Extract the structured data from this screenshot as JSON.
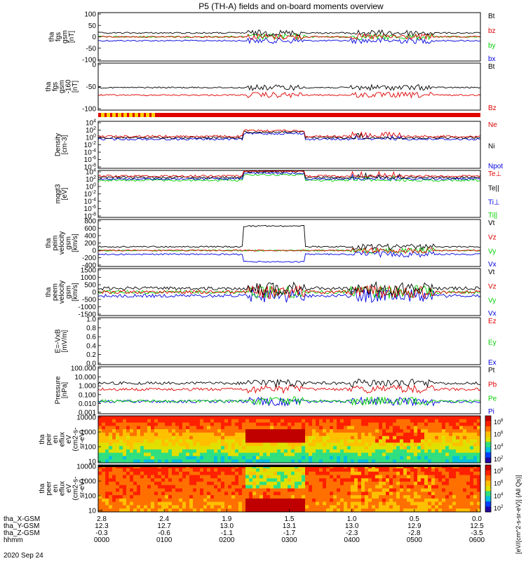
{
  "title": "P5 (TH-A) fields and on-board moments overview",
  "date_label": "2020 Sep 24",
  "spectrogram_colorbar_label": "[eV/(cm^2-s-sr-eV)] (All Qs)]",
  "colors": {
    "red": "#e00000",
    "green": "#00d000",
    "blue": "#0000e0",
    "black": "#000000",
    "yellow": "#ffd000"
  },
  "chart_data": {
    "type": "line",
    "x_axis": {
      "tick_labels": [
        "0000",
        "0100",
        "0200",
        "0300",
        "0400",
        "0500",
        "0600"
      ],
      "extra_rows": [
        {
          "name": "tha_X-GSM",
          "values": [
            "2.8",
            "2.4",
            "1.9",
            "1.5",
            "1.0",
            "0.5",
            "0.0"
          ]
        },
        {
          "name": "tha_Y-GSM",
          "values": [
            "12.3",
            "12.7",
            "13.0",
            "13.1",
            "13.0",
            "12.9",
            "12.5"
          ]
        },
        {
          "name": "tha_Z-GSM",
          "values": [
            "-0.3",
            "-0.6",
            "-1.1",
            "-1.7",
            "-2.3",
            "-2.8",
            "-3.5"
          ]
        },
        {
          "name": "hhmm",
          "values": [
            "0000",
            "0100",
            "0200",
            "0300",
            "0400",
            "0500",
            "0600"
          ]
        }
      ]
    },
    "panels": [
      {
        "ylabel": [
          "tha",
          "fgs",
          "gsm",
          "[nT]"
        ],
        "yticks": [
          "100",
          "50",
          "0",
          "-50",
          "-100"
        ],
        "ylim": [
          -100,
          100
        ],
        "legend": [
          {
            "text": "Bt",
            "color": "black"
          },
          {
            "text": "bz",
            "color": "red"
          },
          {
            "text": "by",
            "color": "green"
          },
          {
            "text": "bx",
            "color": "blue"
          }
        ]
      },
      {
        "ylabel": [
          "tha",
          "fgs",
          "gsm",
          "-160",
          "[nT]"
        ],
        "yticks": [
          "0",
          "-50",
          "-100"
        ],
        "ylim": [
          -130,
          40
        ],
        "legend": [
          {
            "text": "Bt",
            "color": "black"
          },
          {
            "text": "Bz",
            "color": "red"
          }
        ]
      },
      {
        "ylabel": [
          "Density",
          "[cm-3]"
        ],
        "yticks": [
          "10^4",
          "10^2",
          "10^0",
          "10^-2",
          "10^-4",
          "10^-6",
          "10^-8"
        ],
        "legend": [
          {
            "text": "Ne",
            "color": "red"
          },
          {
            "text": "Ni",
            "color": "black"
          },
          {
            "text": "Npot",
            "color": "blue"
          }
        ]
      },
      {
        "ylabel": [
          "mqgt3",
          "[eV]"
        ],
        "yticks": [
          "10^4",
          "10^2",
          "10^0",
          "10^-2",
          "10^-4",
          "10^-6",
          "10^-8"
        ],
        "legend": [
          {
            "text": "Te⊥",
            "color": "red"
          },
          {
            "text": "Te||",
            "color": "black"
          },
          {
            "text": "Ti⊥",
            "color": "blue"
          },
          {
            "text": "Ti||",
            "color": "green"
          }
        ]
      },
      {
        "ylabel": [
          "tha",
          "peim",
          "velocity",
          "gsm",
          "[km/s]"
        ],
        "yticks": [
          "800",
          "600",
          "400",
          "200",
          "0",
          "-200",
          "-400"
        ],
        "ylim": [
          -400,
          800
        ],
        "legend": [
          {
            "text": "Vt",
            "color": "black"
          },
          {
            "text": "Vz",
            "color": "red"
          },
          {
            "text": "Vy",
            "color": "green"
          },
          {
            "text": "Vx",
            "color": "blue"
          }
        ]
      },
      {
        "ylabel": [
          "tha",
          "peem",
          "velocity",
          "gsm",
          "[km/s]"
        ],
        "yticks": [
          "1500",
          "1000",
          "500",
          "0",
          "-500",
          "-1000",
          "-1500"
        ],
        "ylim": [
          -1500,
          1500
        ],
        "legend": [
          {
            "text": "Vt",
            "color": "black"
          },
          {
            "text": "Vz",
            "color": "red"
          },
          {
            "text": "Vy",
            "color": "green"
          },
          {
            "text": "Vx",
            "color": "blue"
          }
        ]
      },
      {
        "ylabel": [
          "E=-VxB",
          "[mV/m]"
        ],
        "yticks": [
          "1.0",
          "0.8",
          "0.6",
          "0.4",
          "0.2",
          "0.0"
        ],
        "ylim": [
          0,
          1
        ],
        "legend": [
          {
            "text": "Ez",
            "color": "red"
          },
          {
            "text": "Ey",
            "color": "green"
          },
          {
            "text": "Ex",
            "color": "blue"
          }
        ]
      },
      {
        "ylabel": [
          "Pressure",
          "[nPa]"
        ],
        "yticks": [
          "100.000",
          "10.000",
          "1.000",
          "0.100",
          "0.010",
          "0.001"
        ],
        "legend": [
          {
            "text": "Pt",
            "color": "black"
          },
          {
            "text": "Pb",
            "color": "red"
          },
          {
            "text": "Pe",
            "color": "green"
          },
          {
            "text": "Pi",
            "color": "blue"
          }
        ]
      },
      {
        "ylabel": [
          "tha",
          "peir",
          "en",
          "eflux",
          "eV",
          "(cm2-s-",
          "sr-eV)"
        ],
        "yticks": [
          "10000",
          "1000",
          "100",
          "10"
        ],
        "colorbar_ticks": [
          "10^8",
          "10^6",
          "10^4",
          "10^2"
        ]
      },
      {
        "ylabel": [
          "tha",
          "peer",
          "en",
          "eflux",
          "eV",
          "(cm2-s-",
          "sr-eV)"
        ],
        "yticks": [
          "10000",
          "1000",
          "100",
          "10"
        ],
        "colorbar_ticks": [
          "10^8",
          "10^6",
          "10^4",
          "10^2"
        ]
      }
    ]
  }
}
